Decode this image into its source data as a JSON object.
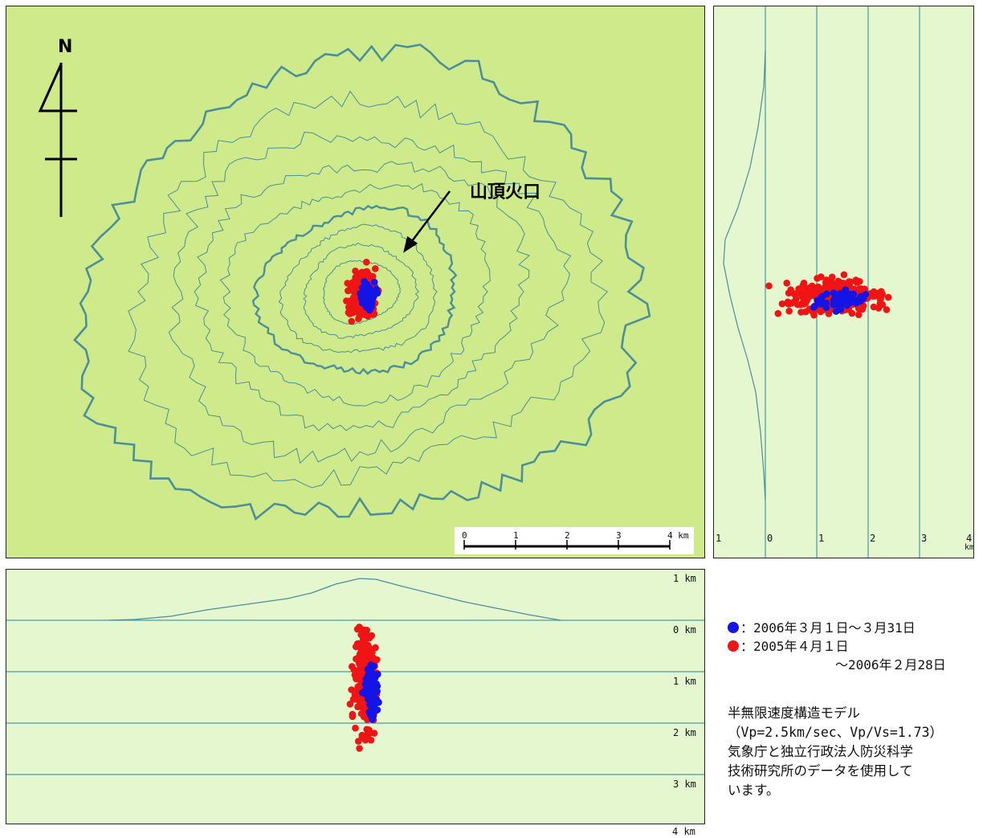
{
  "map": {
    "north_label": "N",
    "crater_label": "山頂火口",
    "scale_ticks": [
      "0",
      "1",
      "2",
      "3",
      "4 km"
    ]
  },
  "ew_section": {
    "depth_labels": [
      "1 km",
      "0 km",
      "1 km",
      "2 km",
      "3 km",
      "4 km"
    ]
  },
  "ns_section": {
    "distance_labels": [
      "1",
      "0",
      "1",
      "2",
      "3",
      "4"
    ],
    "unit_label": "km"
  },
  "legend": {
    "blue": {
      "color": "#1414e6",
      "label": "：2006年３月１日～３月31日"
    },
    "red": {
      "color": "#f01414",
      "label": "：2005年４月１日",
      "label2": "～2006年２月28日"
    }
  },
  "note": {
    "lines": [
      "半無限速度構造モデル",
      "（Vp=2.5km/sec、Vp/Vs=1.73）",
      "気象庁と独立行政法人防災科学",
      "技術研究所のデータを使用して",
      "います。"
    ]
  }
}
